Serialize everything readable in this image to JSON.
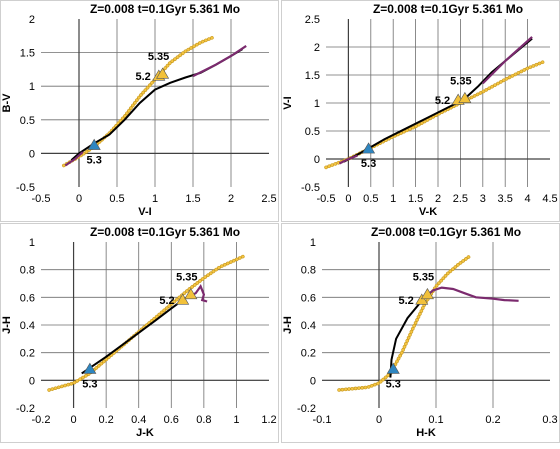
{
  "figure": {
    "colors": {
      "black_track": "#000000",
      "purple_track": "#7b2a6e",
      "yellow_track": "#f5c542",
      "yellow_track_edge": "#c89a20",
      "blue_marker": "#2e86c1",
      "yellow_marker": "#f2c13a",
      "gridline": "#6e6e6e",
      "panel_border": "#cfcfcf"
    }
  },
  "chart_data": [
    {
      "type": "line",
      "title": "Z=0.008  t=0.1Gyr  5.361 Mo",
      "xlabel": "V-I",
      "ylabel": "B-V",
      "xlim": [
        -0.5,
        2.5
      ],
      "ylim": [
        -0.5,
        2
      ],
      "xticks": [
        -0.5,
        0,
        0.5,
        1,
        1.5,
        2,
        2.5
      ],
      "yticks": [
        -0.5,
        0,
        0.5,
        1,
        1.5,
        2
      ],
      "xtick_labels": [
        "-0.5",
        "0",
        "0.5",
        "1",
        "1.5",
        "2",
        "2.5"
      ],
      "ytick_labels": [
        "-0.5",
        "0",
        "0.5",
        "1",
        "1.5",
        "2"
      ],
      "grid": "vertical",
      "series": [
        {
          "style": "dotted-yellow",
          "points": [
            [
              -0.2,
              -0.18
            ],
            [
              0,
              -0.05
            ],
            [
              0.2,
              0.1
            ],
            [
              0.4,
              0.3
            ],
            [
              0.6,
              0.55
            ],
            [
              0.8,
              0.85
            ],
            [
              1.0,
              1.1
            ],
            [
              1.2,
              1.35
            ],
            [
              1.4,
              1.52
            ],
            [
              1.6,
              1.65
            ],
            [
              1.75,
              1.72
            ]
          ]
        },
        {
          "style": "solid-black",
          "points": [
            [
              -0.1,
              -0.1
            ],
            [
              0,
              0
            ],
            [
              0.2,
              0.15
            ],
            [
              0.4,
              0.28
            ],
            [
              0.6,
              0.5
            ],
            [
              0.8,
              0.75
            ],
            [
              1.0,
              0.95
            ],
            [
              1.2,
              1.05
            ],
            [
              1.4,
              1.13
            ],
            [
              1.6,
              1.2
            ],
            [
              1.8,
              1.32
            ],
            [
              2.0,
              1.45
            ],
            [
              2.15,
              1.55
            ]
          ]
        },
        {
          "style": "solid-purple",
          "points": [
            [
              -0.18,
              -0.18
            ],
            [
              -0.05,
              -0.08
            ],
            [
              0.05,
              0.02
            ]
          ]
        },
        {
          "style": "solid-purple",
          "points": [
            [
              1.5,
              1.15
            ],
            [
              1.8,
              1.32
            ],
            [
              2.0,
              1.45
            ],
            [
              2.2,
              1.6
            ]
          ]
        }
      ],
      "markers": [
        {
          "shape": "triangle",
          "color": "blue",
          "point": [
            0.2,
            0.12
          ],
          "label": "5.3"
        },
        {
          "shape": "triangle",
          "color": "yellow",
          "point": [
            1.05,
            1.15
          ],
          "label": "5.2"
        },
        {
          "shape": "triangle",
          "color": "yellow",
          "point": [
            1.1,
            1.18
          ],
          "label": "5.35"
        }
      ]
    },
    {
      "type": "line",
      "title": "Z=0.008  t=0.1Gyr  5.361 Mo",
      "xlabel": "V-K",
      "ylabel": "V-I",
      "xlim": [
        -0.5,
        4.5
      ],
      "ylim": [
        -0.5,
        2.5
      ],
      "xticks": [
        -0.5,
        0,
        0.5,
        1,
        1.5,
        2,
        2.5,
        3,
        3.5,
        4,
        4.5
      ],
      "yticks": [
        -0.5,
        0,
        0.5,
        1,
        1.5,
        2,
        2.5
      ],
      "xtick_labels": [
        "-0.5",
        "0",
        "0.5",
        "1",
        "1.5",
        "2",
        "2.5",
        "3",
        "3.5",
        "4",
        "4.5"
      ],
      "ytick_labels": [
        "-0.5",
        "0",
        "0.5",
        "1",
        "1.5",
        "2",
        "2.5"
      ],
      "grid": "vertical",
      "series": [
        {
          "style": "dotted-yellow",
          "points": [
            [
              -0.5,
              -0.15
            ],
            [
              0,
              0
            ],
            [
              0.5,
              0.2
            ],
            [
              1.0,
              0.4
            ],
            [
              1.5,
              0.58
            ],
            [
              2.0,
              0.8
            ],
            [
              2.5,
              1.0
            ],
            [
              3.0,
              1.2
            ],
            [
              3.5,
              1.42
            ],
            [
              4.0,
              1.62
            ],
            [
              4.4,
              1.75
            ]
          ]
        },
        {
          "style": "solid-black",
          "points": [
            [
              -0.1,
              -0.05
            ],
            [
              0.3,
              0.12
            ],
            [
              0.8,
              0.35
            ],
            [
              1.3,
              0.55
            ],
            [
              1.8,
              0.75
            ],
            [
              2.3,
              0.95
            ],
            [
              2.6,
              1.08
            ],
            [
              2.9,
              1.3
            ],
            [
              3.2,
              1.55
            ],
            [
              3.5,
              1.75
            ],
            [
              3.8,
              1.95
            ],
            [
              4.1,
              2.15
            ]
          ]
        },
        {
          "style": "solid-purple",
          "points": [
            [
              -0.2,
              -0.08
            ],
            [
              0,
              0
            ],
            [
              0.2,
              0.06
            ]
          ]
        },
        {
          "style": "solid-purple",
          "points": [
            [
              3.0,
              1.35
            ],
            [
              3.5,
              1.75
            ],
            [
              4.1,
              2.18
            ]
          ]
        }
      ],
      "markers": [
        {
          "shape": "triangle",
          "color": "blue",
          "point": [
            0.45,
            0.18
          ],
          "label": "5.3"
        },
        {
          "shape": "triangle",
          "color": "yellow",
          "point": [
            2.45,
            1.05
          ],
          "label": "5.2"
        },
        {
          "shape": "triangle",
          "color": "yellow",
          "point": [
            2.6,
            1.08
          ],
          "label": "5.35"
        }
      ]
    },
    {
      "type": "line",
      "title": "Z=0.008  t=0.1Gyr  5.361 Mo",
      "xlabel": "J-K",
      "ylabel": "J-H",
      "xlim": [
        -0.2,
        1.2
      ],
      "ylim": [
        -0.2,
        1
      ],
      "xticks": [
        -0.2,
        0,
        0.2,
        0.4,
        0.6,
        0.8,
        1,
        1.2
      ],
      "yticks": [
        -0.2,
        0,
        0.2,
        0.4,
        0.6,
        0.8,
        1
      ],
      "xtick_labels": [
        "-0.2",
        "0",
        "0.2",
        "0.4",
        "0.6",
        "0.8",
        "1",
        "1.2"
      ],
      "ytick_labels": [
        "-0.2",
        "0",
        "0.2",
        "0.4",
        "0.6",
        "0.8",
        "1"
      ],
      "grid": "vertical",
      "series": [
        {
          "style": "dotted-yellow",
          "points": [
            [
              -0.15,
              -0.07
            ],
            [
              0,
              -0.02
            ],
            [
              0.1,
              0.05
            ],
            [
              0.2,
              0.15
            ],
            [
              0.3,
              0.25
            ],
            [
              0.4,
              0.35
            ],
            [
              0.5,
              0.45
            ],
            [
              0.6,
              0.55
            ],
            [
              0.7,
              0.65
            ],
            [
              0.8,
              0.74
            ],
            [
              0.9,
              0.82
            ],
            [
              1.05,
              0.9
            ]
          ]
        },
        {
          "style": "solid-black",
          "points": [
            [
              0.05,
              0.05
            ],
            [
              0.2,
              0.17
            ],
            [
              0.35,
              0.3
            ],
            [
              0.5,
              0.43
            ],
            [
              0.6,
              0.52
            ],
            [
              0.67,
              0.58
            ]
          ]
        },
        {
          "style": "solid-purple",
          "points": [
            [
              0.7,
              0.6
            ],
            [
              0.75,
              0.63
            ],
            [
              0.78,
              0.68
            ],
            [
              0.8,
              0.62
            ],
            [
              0.79,
              0.58
            ],
            [
              0.82,
              0.57
            ]
          ]
        }
      ],
      "markers": [
        {
          "shape": "triangle",
          "color": "blue",
          "point": [
            0.1,
            0.08
          ],
          "label": "5.3"
        },
        {
          "shape": "triangle",
          "color": "yellow",
          "point": [
            0.67,
            0.58
          ],
          "label": "5.2"
        },
        {
          "shape": "triangle",
          "color": "yellow",
          "point": [
            0.72,
            0.62
          ],
          "label": "5.35"
        }
      ]
    },
    {
      "type": "line",
      "title": "Z=0.008  t=0.1Gyr  5.361 Mo",
      "xlabel": "H-K",
      "ylabel": "J-H",
      "xlim": [
        -0.1,
        0.3
      ],
      "ylim": [
        -0.2,
        1
      ],
      "xticks": [
        -0.1,
        0,
        0.1,
        0.2,
        0.3
      ],
      "yticks": [
        -0.2,
        0,
        0.2,
        0.4,
        0.6,
        0.8,
        1
      ],
      "xtick_labels": [
        "-0.1",
        "0",
        "0.1",
        "0.2",
        "0.3"
      ],
      "ytick_labels": [
        "-0.2",
        "0",
        "0.2",
        "0.4",
        "0.6",
        "0.8",
        "1"
      ],
      "grid": "vertical",
      "series": [
        {
          "style": "dotted-yellow",
          "points": [
            [
              -0.07,
              -0.07
            ],
            [
              -0.02,
              -0.05
            ],
            [
              0.0,
              -0.02
            ],
            [
              0.02,
              0.05
            ],
            [
              0.04,
              0.2
            ],
            [
              0.06,
              0.38
            ],
            [
              0.08,
              0.55
            ],
            [
              0.1,
              0.68
            ],
            [
              0.12,
              0.77
            ],
            [
              0.14,
              0.84
            ],
            [
              0.16,
              0.9
            ]
          ]
        },
        {
          "style": "solid-black",
          "points": [
            [
              0.02,
              0.02
            ],
            [
              0.022,
              0.15
            ],
            [
              0.03,
              0.3
            ],
            [
              0.05,
              0.45
            ],
            [
              0.07,
              0.55
            ],
            [
              0.08,
              0.6
            ]
          ]
        },
        {
          "style": "solid-purple",
          "points": [
            [
              0.08,
              0.6
            ],
            [
              0.095,
              0.65
            ],
            [
              0.11,
              0.67
            ],
            [
              0.13,
              0.66
            ],
            [
              0.15,
              0.63
            ],
            [
              0.17,
              0.6
            ],
            [
              0.2,
              0.59
            ],
            [
              0.22,
              0.58
            ],
            [
              0.245,
              0.575
            ]
          ]
        }
      ],
      "markers": [
        {
          "shape": "triangle",
          "color": "blue",
          "point": [
            0.025,
            0.08
          ],
          "label": "5.3"
        },
        {
          "shape": "triangle",
          "color": "yellow",
          "point": [
            0.075,
            0.58
          ],
          "label": "5.2"
        },
        {
          "shape": "triangle",
          "color": "yellow",
          "point": [
            0.085,
            0.62
          ],
          "label": "5.35"
        }
      ]
    }
  ]
}
